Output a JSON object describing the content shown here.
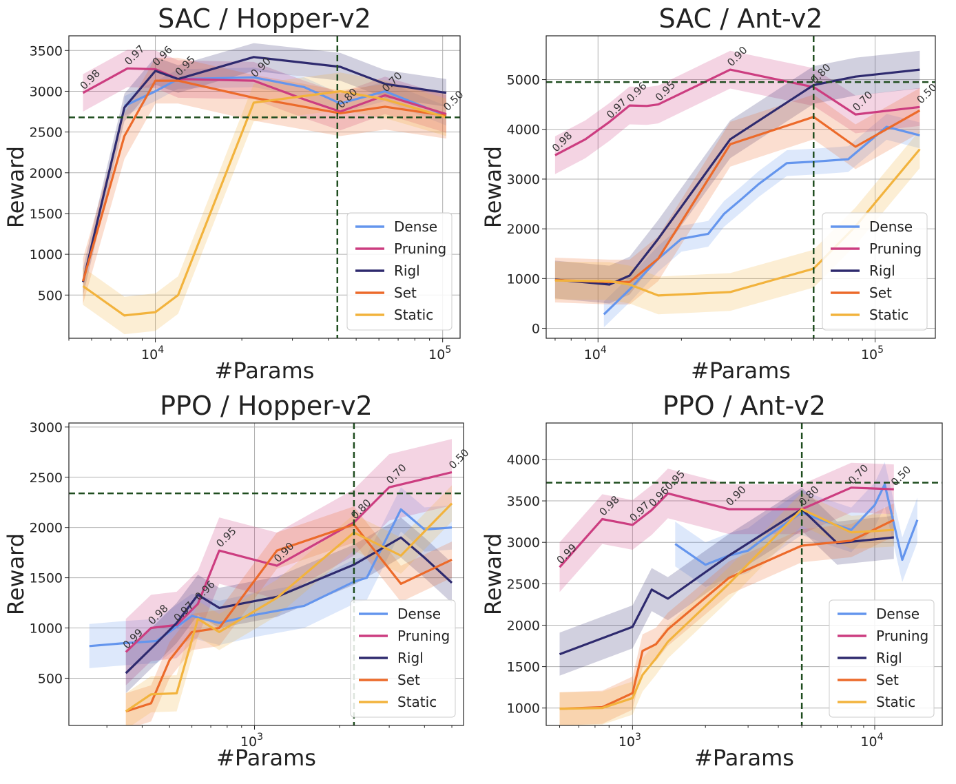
{
  "colors": {
    "Dense": "#6495ed",
    "Pruning": "#cc3d80",
    "Rigl": "#2e2a6e",
    "Set": "#ec6a2a",
    "Static": "#f2b33d",
    "reference": "#1f4d1f"
  },
  "chart_data": [
    {
      "type": "line",
      "title": "SAC / Hopper-v2",
      "xlabel": "#Params",
      "ylabel": "Reward",
      "xscale": "log",
      "xlim": [
        5000,
        115000
      ],
      "ylim": [
        -30,
        3680
      ],
      "xticks": [
        10000,
        100000
      ],
      "xtick_labels": [
        "10",
        "10"
      ],
      "xtick_exps": [
        "4",
        "5"
      ],
      "yticks": [
        500,
        1000,
        1500,
        2000,
        2500,
        3000,
        3500
      ],
      "ytick_labels": [
        "500",
        "1000",
        "1500",
        "2000",
        "2500",
        "3000",
        "3500"
      ],
      "grid": true,
      "legend_position": "lower-right",
      "ref_x": 43000,
      "ref_y": 2680,
      "series": [
        {
          "name": "Dense",
          "x": [
            7800,
            10000,
            12000,
            22000,
            33000,
            44000,
            63000,
            103000
          ],
          "y": [
            2820,
            3000,
            3150,
            3170,
            3050,
            2850,
            3000,
            2700
          ],
          "band": 120
        },
        {
          "name": "Pruning",
          "x": [
            5600,
            8000,
            10000,
            12000,
            22000,
            33000,
            44000,
            63000,
            103000
          ],
          "y": [
            2980,
            3280,
            3270,
            3150,
            3130,
            2900,
            2750,
            2950,
            2720
          ],
          "band": 230
        },
        {
          "name": "Rigl",
          "x": [
            5600,
            7800,
            10000,
            12000,
            22000,
            44000,
            63000,
            103000
          ],
          "y": [
            660,
            2800,
            3250,
            3150,
            3420,
            3300,
            3090,
            2980
          ],
          "band": 170
        },
        {
          "name": "Set",
          "x": [
            5600,
            7800,
            10000,
            12000,
            22000,
            44000,
            63000,
            103000
          ],
          "y": [
            670,
            2450,
            3130,
            3130,
            2920,
            2730,
            2810,
            2700
          ],
          "band": 280
        },
        {
          "name": "Static",
          "x": [
            5600,
            7800,
            10000,
            12000,
            22000,
            44000,
            63000,
            103000
          ],
          "y": [
            610,
            250,
            290,
            500,
            2860,
            3000,
            2900,
            2680
          ],
          "band": 230
        }
      ],
      "annotations": [
        {
          "label": "0.98",
          "x": 5600,
          "y": 2980
        },
        {
          "label": "0.97",
          "x": 8000,
          "y": 3280
        },
        {
          "label": "0.96",
          "x": 10000,
          "y": 3270
        },
        {
          "label": "0.95",
          "x": 12000,
          "y": 3150
        },
        {
          "label": "0.90",
          "x": 22000,
          "y": 3130
        },
        {
          "label": "0.80",
          "x": 44000,
          "y": 2750
        },
        {
          "label": "0.70",
          "x": 63000,
          "y": 2950
        },
        {
          "label": "0.50",
          "x": 103000,
          "y": 2720
        }
      ]
    },
    {
      "type": "line",
      "title": "SAC / Ant-v2",
      "xlabel": "#Params",
      "ylabel": "Reward",
      "xscale": "log",
      "xlim": [
        6500,
        165000
      ],
      "ylim": [
        -200,
        5880
      ],
      "xticks": [
        10000,
        100000
      ],
      "xtick_labels": [
        "10",
        "10"
      ],
      "xtick_exps": [
        "4",
        "5"
      ],
      "yticks": [
        0,
        1000,
        2000,
        3000,
        4000,
        5000
      ],
      "ytick_labels": [
        "0",
        "1000",
        "2000",
        "3000",
        "4000",
        "5000"
      ],
      "grid": true,
      "legend_position": "lower-right",
      "ref_x": 60000,
      "ref_y": 4950,
      "series": [
        {
          "name": "Dense",
          "x": [
            10500,
            13000,
            16500,
            20000,
            25000,
            28500,
            33000,
            38000,
            48000,
            60000,
            80000,
            110000,
            145000
          ],
          "y": [
            280,
            780,
            1400,
            1800,
            1900,
            2300,
            2600,
            2900,
            3320,
            3350,
            3400,
            4050,
            3880
          ],
          "band": 260
        },
        {
          "name": "Pruning",
          "x": [
            7000,
            9000,
            11000,
            13000,
            15000,
            16500,
            30000,
            60000,
            85000,
            145000
          ],
          "y": [
            3480,
            3800,
            4150,
            4480,
            4470,
            4500,
            5200,
            4850,
            4300,
            4450
          ],
          "band": 380
        },
        {
          "name": "Rigl",
          "x": [
            7000,
            11000,
            13000,
            16500,
            30000,
            60000,
            85000,
            145000
          ],
          "y": [
            980,
            880,
            1060,
            1800,
            3800,
            4890,
            5060,
            5200
          ],
          "band": 380
        },
        {
          "name": "Set",
          "x": [
            7000,
            11000,
            13000,
            16500,
            30000,
            60000,
            85000,
            145000
          ],
          "y": [
            970,
            930,
            930,
            1400,
            3700,
            4250,
            3650,
            4380
          ],
          "band": 450
        },
        {
          "name": "Static",
          "x": [
            7000,
            11000,
            13000,
            16500,
            30000,
            60000,
            85000,
            145000
          ],
          "y": [
            960,
            950,
            880,
            660,
            730,
            1200,
            2050,
            3600
          ],
          "band": 380
        }
      ],
      "annotations": [
        {
          "label": "0.98",
          "x": 7000,
          "y": 3480
        },
        {
          "label": "0.97",
          "x": 11000,
          "y": 4150
        },
        {
          "label": "0.96",
          "x": 13000,
          "y": 4480
        },
        {
          "label": "0.95",
          "x": 16500,
          "y": 4500
        },
        {
          "label": "0.90",
          "x": 30000,
          "y": 5200
        },
        {
          "label": "0.80",
          "x": 60000,
          "y": 4850
        },
        {
          "label": "0.70",
          "x": 85000,
          "y": 4300
        },
        {
          "label": "0.50",
          "x": 145000,
          "y": 4450
        }
      ]
    },
    {
      "type": "line",
      "title": "PPO / Hopper-v2",
      "xlabel": "#Params",
      "ylabel": "Reward",
      "xscale": "log",
      "xlim": [
        220,
        5500
      ],
      "ylim": [
        30,
        3040
      ],
      "xticks": [
        1000
      ],
      "xtick_labels": [
        "10"
      ],
      "xtick_exps": [
        "3"
      ],
      "yticks": [
        500,
        1000,
        1500,
        2000,
        2500,
        3000
      ],
      "ytick_labels": [
        "500",
        "1000",
        "1500",
        "2000",
        "2500",
        "3000"
      ],
      "grid": true,
      "legend_position": "lower-right",
      "ref_x": 2250,
      "ref_y": 2340,
      "series": [
        {
          "name": "Dense",
          "x": [
            260,
            350,
            450,
            600,
            750,
            1000,
            1500,
            2250,
            2500,
            3300,
            4000,
            5000
          ],
          "y": [
            820,
            850,
            870,
            1120,
            1050,
            1130,
            1220,
            1460,
            1500,
            2180,
            1980,
            2000
          ],
          "band": 220
        },
        {
          "name": "Pruning",
          "x": [
            350,
            430,
            530,
            630,
            750,
            1200,
            2250,
            3000,
            5000
          ],
          "y": [
            760,
            1000,
            1030,
            1240,
            1770,
            1620,
            2050,
            2400,
            2550
          ],
          "band": 330
        },
        {
          "name": "Rigl",
          "x": [
            350,
            450,
            530,
            630,
            750,
            1200,
            2250,
            3300,
            4000,
            5000
          ],
          "y": [
            550,
            850,
            1050,
            1330,
            1200,
            1310,
            1630,
            1900,
            1700,
            1450
          ],
          "band": 200
        },
        {
          "name": "Set",
          "x": [
            350,
            430,
            500,
            600,
            750,
            1200,
            2250,
            3300,
            5000
          ],
          "y": [
            170,
            250,
            680,
            960,
            1000,
            1770,
            2030,
            1440,
            1680
          ],
          "band": 180
        },
        {
          "name": "Static",
          "x": [
            350,
            430,
            530,
            630,
            750,
            1200,
            2250,
            3300,
            5000
          ],
          "y": [
            170,
            340,
            350,
            1090,
            960,
            1300,
            1950,
            1720,
            2240
          ],
          "band": 180
        }
      ],
      "annotations": [
        {
          "label": "0.99",
          "x": 350,
          "y": 760
        },
        {
          "label": "0.98",
          "x": 430,
          "y": 1000
        },
        {
          "label": "0.97",
          "x": 530,
          "y": 1030
        },
        {
          "label": "0.96",
          "x": 630,
          "y": 1240
        },
        {
          "label": "0.95",
          "x": 750,
          "y": 1770
        },
        {
          "label": "0.90",
          "x": 1200,
          "y": 1620
        },
        {
          "label": "0.80",
          "x": 2250,
          "y": 2050
        },
        {
          "label": "0.70",
          "x": 3000,
          "y": 2400
        },
        {
          "label": "0.50",
          "x": 5000,
          "y": 2550
        }
      ]
    },
    {
      "type": "line",
      "title": "PPO / Ant-v2",
      "xlabel": "#Params",
      "ylabel": "Reward",
      "xscale": "log",
      "xlim": [
        440,
        19000
      ],
      "ylim": [
        790,
        4440
      ],
      "xticks": [
        1000,
        10000
      ],
      "xtick_labels": [
        "10",
        "10"
      ],
      "xtick_exps": [
        "3",
        "4"
      ],
      "yticks": [
        1000,
        1500,
        2000,
        2500,
        3000,
        3500,
        4000
      ],
      "ytick_labels": [
        "1000",
        "1500",
        "2000",
        "2500",
        "3000",
        "3500",
        "4000"
      ],
      "grid": true,
      "legend_position": "lower-right",
      "ref_x": 5000,
      "ref_y": 3720,
      "series": [
        {
          "name": "Dense",
          "x": [
            1500,
            2000,
            2500,
            3000,
            3500,
            5000,
            6000,
            8000,
            10000,
            11000,
            13000,
            15000
          ],
          "y": [
            2980,
            2730,
            2840,
            2900,
            3050,
            3360,
            3270,
            3150,
            3450,
            3700,
            2790,
            3270
          ],
          "band": 270
        },
        {
          "name": "Pruning",
          "x": [
            500,
            750,
            1000,
            1200,
            1400,
            2500,
            5000,
            8000,
            12000
          ],
          "y": [
            2700,
            3280,
            3210,
            3390,
            3590,
            3400,
            3400,
            3660,
            3640
          ],
          "band": 300
        },
        {
          "name": "Rigl",
          "x": [
            500,
            1000,
            1200,
            1400,
            2500,
            5000,
            7000,
            12000
          ],
          "y": [
            1650,
            1980,
            2430,
            2320,
            2840,
            3400,
            2990,
            3060
          ],
          "band": 260
        },
        {
          "name": "Set",
          "x": [
            500,
            750,
            1000,
            1100,
            1250,
            1400,
            2500,
            5000,
            8000,
            12000
          ],
          "y": [
            990,
            1010,
            1180,
            1690,
            1770,
            1950,
            2570,
            2960,
            3020,
            3270
          ],
          "band": 200
        },
        {
          "name": "Static",
          "x": [
            500,
            750,
            1000,
            1100,
            1250,
            1400,
            2500,
            5000,
            8000,
            12000
          ],
          "y": [
            990,
            1000,
            1120,
            1400,
            1600,
            1800,
            2500,
            3400,
            3120,
            3150
          ],
          "band": 200
        }
      ],
      "annotations": [
        {
          "label": "0.99",
          "x": 500,
          "y": 2700
        },
        {
          "label": "0.98",
          "x": 750,
          "y": 3280
        },
        {
          "label": "0.97",
          "x": 1000,
          "y": 3210
        },
        {
          "label": "0.96",
          "x": 1200,
          "y": 3390
        },
        {
          "label": "0.95",
          "x": 1400,
          "y": 3590
        },
        {
          "label": "0.90",
          "x": 2500,
          "y": 3400
        },
        {
          "label": "0.80",
          "x": 5000,
          "y": 3400
        },
        {
          "label": "0.70",
          "x": 8000,
          "y": 3660
        },
        {
          "label": "0.50",
          "x": 12000,
          "y": 3640
        }
      ]
    }
  ]
}
